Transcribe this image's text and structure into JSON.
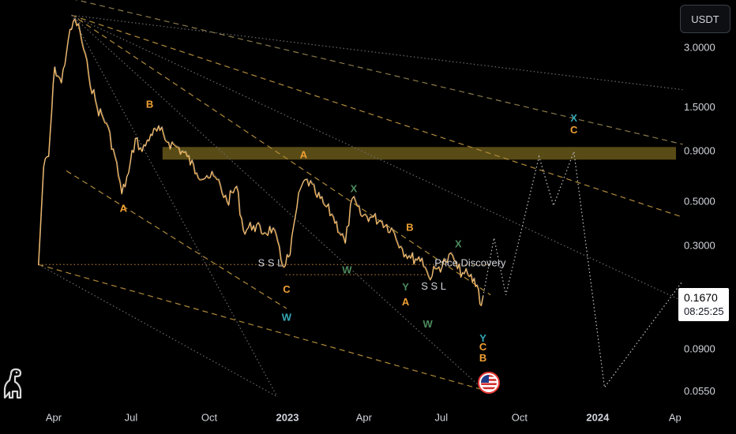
{
  "chart_data": {
    "type": "line",
    "symbol_currency": "USDT",
    "y_scale": "log",
    "ylim": [
      0.05,
      5.0
    ],
    "y_ticks": [
      "3.0000",
      "1.5000",
      "0.9000",
      "0.5000",
      "0.3000",
      "0.0900",
      "0.0550"
    ],
    "x_ticks": [
      "Apr",
      "Jul",
      "Oct",
      "2023",
      "Apr",
      "Jul",
      "Oct",
      "2024",
      "Ap"
    ],
    "last_price": "0.1670",
    "countdown": "08:25:25",
    "series": [
      {
        "values": [
          [
            "2022-03-14",
            0.24
          ],
          [
            "2022-03-20",
            0.75
          ],
          [
            "2022-03-26",
            0.85
          ],
          [
            "2022-04-02",
            2.4
          ],
          [
            "2022-04-10",
            2.0
          ],
          [
            "2022-04-18",
            3.3
          ],
          [
            "2022-04-26",
            4.2
          ],
          [
            "2022-05-02",
            3.6
          ],
          [
            "2022-05-12",
            2.2
          ],
          [
            "2022-05-22",
            1.5
          ],
          [
            "2022-06-02",
            1.25
          ],
          [
            "2022-06-12",
            0.85
          ],
          [
            "2022-06-20",
            0.55
          ],
          [
            "2022-06-28",
            0.7
          ],
          [
            "2022-07-06",
            1.05
          ],
          [
            "2022-07-14",
            0.9
          ],
          [
            "2022-07-24",
            1.1
          ],
          [
            "2022-08-04",
            1.15
          ],
          [
            "2022-08-14",
            1.0
          ],
          [
            "2022-08-24",
            0.95
          ],
          [
            "2022-09-05",
            0.85
          ],
          [
            "2022-09-16",
            0.7
          ],
          [
            "2022-09-28",
            0.68
          ],
          [
            "2022-10-10",
            0.65
          ],
          [
            "2022-10-22",
            0.5
          ],
          [
            "2022-11-02",
            0.6
          ],
          [
            "2022-11-10",
            0.36
          ],
          [
            "2022-11-22",
            0.38
          ],
          [
            "2022-12-05",
            0.35
          ],
          [
            "2022-12-15",
            0.37
          ],
          [
            "2022-12-26",
            0.24
          ],
          [
            "2023-01-04",
            0.27
          ],
          [
            "2023-01-10",
            0.42
          ],
          [
            "2023-01-16",
            0.58
          ],
          [
            "2023-01-24",
            0.65
          ],
          [
            "2023-02-03",
            0.55
          ],
          [
            "2023-02-14",
            0.48
          ],
          [
            "2023-02-24",
            0.42
          ],
          [
            "2023-03-10",
            0.31
          ],
          [
            "2023-03-18",
            0.52
          ],
          [
            "2023-03-28",
            0.43
          ],
          [
            "2023-04-10",
            0.42
          ],
          [
            "2023-04-22",
            0.4
          ],
          [
            "2023-05-05",
            0.36
          ],
          [
            "2023-05-16",
            0.29
          ],
          [
            "2023-05-26",
            0.26
          ],
          [
            "2023-06-08",
            0.26
          ],
          [
            "2023-06-16",
            0.21
          ],
          [
            "2023-06-26",
            0.23
          ],
          [
            "2023-07-06",
            0.25
          ],
          [
            "2023-07-14",
            0.27
          ],
          [
            "2023-07-20",
            0.23
          ],
          [
            "2023-07-26",
            0.22
          ],
          [
            "2023-08-03",
            0.21
          ],
          [
            "2023-08-12",
            0.19
          ],
          [
            "2023-08-17",
            0.15
          ],
          [
            "2023-08-19",
            0.167
          ]
        ]
      }
    ],
    "projection": [
      [
        "2023-08-19",
        0.167
      ],
      [
        "2023-09-01",
        0.33
      ],
      [
        "2023-09-15",
        0.17
      ],
      [
        "2023-10-24",
        0.85
      ],
      [
        "2023-11-10",
        0.48
      ],
      [
        "2023-12-04",
        0.9
      ],
      [
        "2024-01-09",
        0.058
      ],
      [
        "2024-04-10",
        0.2
      ]
    ],
    "zones": [
      {
        "from": "2022-08-07",
        "to": "2024-04-05",
        "low": 0.82,
        "high": 0.95,
        "color": "#e8c63a"
      }
    ],
    "annotations": [
      {
        "text": "Price Discovery",
        "date": "2023-08-04",
        "price": 0.245,
        "color": "#5d6069"
      },
      {
        "text": "S S L",
        "date": "2022-12-12",
        "price": 0.245,
        "color": "#9a9da6"
      },
      {
        "text": "S S L",
        "date": "2023-06-22",
        "price": 0.187,
        "color": "#9a9da6"
      }
    ],
    "wave_labels": [
      {
        "text": "B",
        "date": "2022-07-23",
        "price": 1.55,
        "color": "#f0a033"
      },
      {
        "text": "A",
        "date": "2022-06-22",
        "price": 0.46,
        "color": "#f0a033"
      },
      {
        "text": "A",
        "date": "2023-01-20",
        "price": 0.86,
        "color": "#f0a033"
      },
      {
        "text": "C",
        "date": "2022-12-31",
        "price": 0.18,
        "color": "#f0a033"
      },
      {
        "text": "W",
        "date": "2022-12-31",
        "price": 0.13,
        "color": "#35a6b3"
      },
      {
        "text": "X",
        "date": "2023-03-20",
        "price": 0.58,
        "color": "#4c8a5d"
      },
      {
        "text": "W",
        "date": "2023-03-12",
        "price": 0.225,
        "color": "#4c8a5d"
      },
      {
        "text": "B",
        "date": "2023-05-25",
        "price": 0.37,
        "color": "#f0a033"
      },
      {
        "text": "Y",
        "date": "2023-05-20",
        "price": 0.185,
        "color": "#4c8a5d"
      },
      {
        "text": "A",
        "date": "2023-05-20",
        "price": 0.155,
        "color": "#f0a033"
      },
      {
        "text": "W",
        "date": "2023-06-15",
        "price": 0.12,
        "color": "#4c8a5d"
      },
      {
        "text": "X",
        "date": "2023-07-21",
        "price": 0.305,
        "color": "#4c8a5d"
      },
      {
        "text": "Y",
        "date": "2023-08-19",
        "price": 0.102,
        "color": "#35a6b3"
      },
      {
        "text": "C",
        "date": "2023-08-19",
        "price": 0.092,
        "color": "#f0a033"
      },
      {
        "text": "B",
        "date": "2023-08-19",
        "price": 0.081,
        "color": "#f0a033"
      },
      {
        "text": "X",
        "date": "2023-12-04",
        "price": 1.32,
        "color": "#35a6b3"
      },
      {
        "text": "C",
        "date": "2023-12-04",
        "price": 1.15,
        "color": "#f0a033"
      }
    ],
    "trendlines": [
      {
        "from": [
          "2022-03-10",
          5.9
        ],
        "to": [
          "2024-04-10",
          0.98
        ],
        "style": "dashed",
        "color": "#8a7a4a"
      },
      {
        "from": [
          "2022-04-22",
          4.4
        ],
        "to": [
          "2024-04-10",
          1.85
        ],
        "style": "dotted",
        "color": "#6a6a6a"
      },
      {
        "from": [
          "2022-04-22",
          4.4
        ],
        "to": [
          "2024-04-10",
          0.42
        ],
        "style": "dashed",
        "color": "#b08a3a"
      },
      {
        "from": [
          "2022-04-22",
          4.4
        ],
        "to": [
          "2024-04-10",
          0.158
        ],
        "style": "dotted",
        "color": "#6a6a6a"
      },
      {
        "from": [
          "2022-04-22",
          4.4
        ],
        "to": [
          "2023-08-20",
          0.0562
        ],
        "style": "dotted",
        "color": "#6a6a6a"
      },
      {
        "from": [
          "2022-04-22",
          4.4
        ],
        "to": [
          "2022-12-20",
          0.052
        ],
        "style": "dotted",
        "color": "#6a6a6a"
      },
      {
        "from": [
          "2022-03-14",
          0.242
        ],
        "to": [
          "2023-08-20",
          0.0562
        ],
        "style": "dashed",
        "color": "#b08a3a"
      },
      {
        "from": [
          "2022-03-14",
          0.242
        ],
        "to": [
          "2022-12-20",
          0.052
        ],
        "style": "dotted",
        "color": "#6a6a6a"
      },
      {
        "from": [
          "2022-04-16",
          0.72
        ],
        "to": [
          "2022-12-31",
          0.145
        ],
        "style": "dashed",
        "color": "#b08a3a"
      },
      {
        "from": [
          "2022-04-30",
          4.2
        ],
        "to": [
          "2023-08-28",
          0.17
        ],
        "style": "dashed",
        "color": "#b08a3a"
      },
      {
        "from": [
          "2022-03-14",
          0.242
        ],
        "to": [
          "2023-08-28",
          0.242
        ],
        "style": "dotted",
        "color": "#a8722e"
      },
      {
        "from": [
          "2022-12-30",
          0.215
        ],
        "to": [
          "2023-06-14",
          0.215
        ],
        "style": "dotted",
        "color": "#a8722e"
      }
    ]
  }
}
